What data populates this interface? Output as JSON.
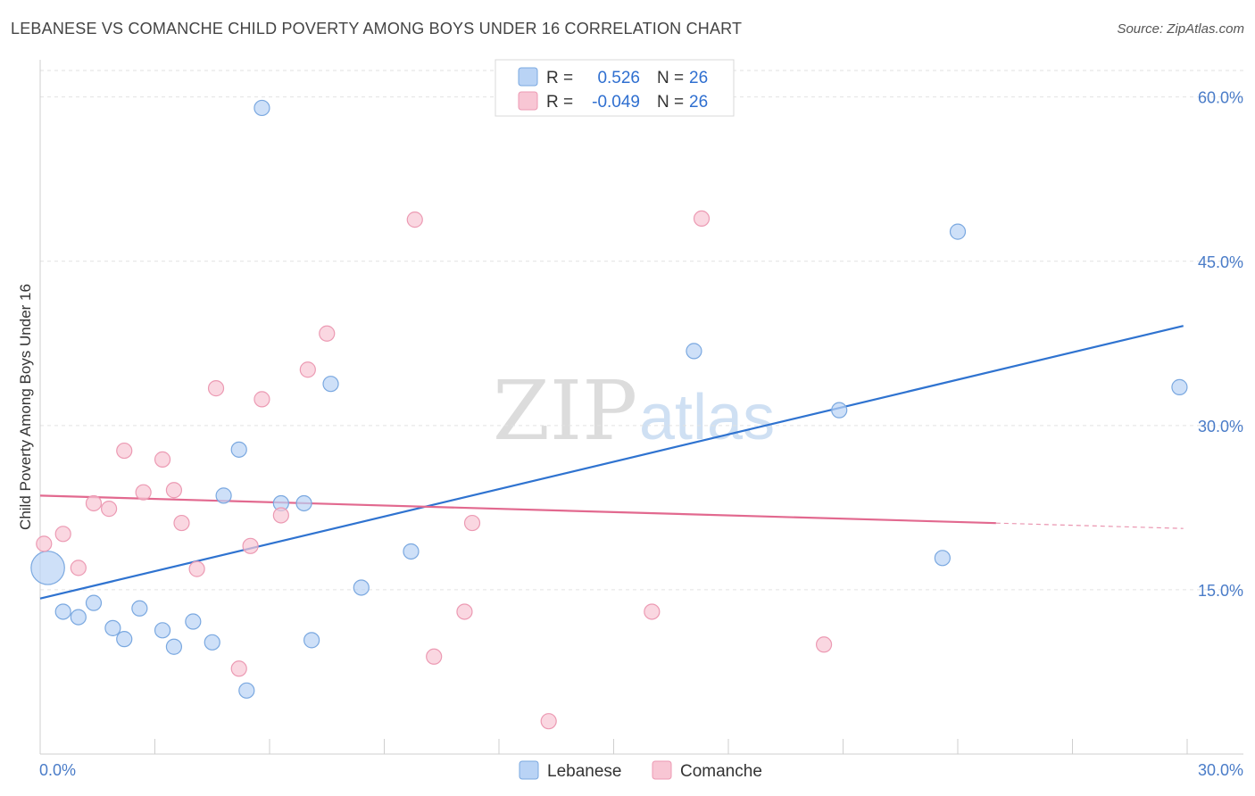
{
  "title": "LEBANESE VS COMANCHE CHILD POVERTY AMONG BOYS UNDER 16 CORRELATION CHART",
  "source": "Source: ZipAtlas.com",
  "watermark": {
    "zip": "ZIP",
    "atlas": "atlas"
  },
  "colors": {
    "blue_fill": "#b9d3f5",
    "blue_stroke": "#7aa8e0",
    "blue_line": "#2f73d0",
    "pink_fill": "#f8c6d4",
    "pink_stroke": "#ec9ab3",
    "pink_line": "#e2698f",
    "value_text": "#2f6fd0"
  },
  "legend_top": [
    {
      "r_label": "R =",
      "r_value": "0.526",
      "n_label": "N =",
      "n_value": "26",
      "series": "blue"
    },
    {
      "r_label": "R =",
      "r_value": "-0.049",
      "n_label": "N =",
      "n_value": "26",
      "series": "pink"
    }
  ],
  "chart_data": {
    "type": "scatter",
    "title": "LEBANESE VS COMANCHE CHILD POVERTY AMONG BOYS UNDER 16 CORRELATION CHART",
    "xlabel": "",
    "ylabel": "Child Poverty Among Boys Under 16",
    "xlim": [
      0,
      30
    ],
    "ylim": [
      0,
      62.5
    ],
    "x_tick_labels": [
      "0.0%",
      "30.0%"
    ],
    "y_ticks": [
      15,
      30,
      45,
      60
    ],
    "y_tick_labels": [
      "15.0%",
      "30.0%",
      "45.0%",
      "60.0%"
    ],
    "legend_position": "bottom-center",
    "series": [
      {
        "name": "Lebanese",
        "color": "blue",
        "points": [
          [
            0.2,
            17.0,
            2.2
          ],
          [
            0.6,
            13.0,
            1
          ],
          [
            1.0,
            12.5,
            1
          ],
          [
            1.4,
            13.8,
            1
          ],
          [
            1.9,
            11.5,
            1
          ],
          [
            2.2,
            10.5,
            1
          ],
          [
            2.6,
            13.3,
            1
          ],
          [
            3.2,
            11.3,
            1
          ],
          [
            3.5,
            9.8,
            1
          ],
          [
            4.0,
            12.1,
            1
          ],
          [
            4.5,
            10.2,
            1
          ],
          [
            4.8,
            23.6,
            1
          ],
          [
            5.2,
            27.8,
            1
          ],
          [
            5.4,
            5.8,
            1
          ],
          [
            5.8,
            59.0,
            1
          ],
          [
            6.3,
            22.9,
            1
          ],
          [
            6.9,
            22.9,
            1
          ],
          [
            7.1,
            10.4,
            1
          ],
          [
            7.6,
            33.8,
            1
          ],
          [
            8.4,
            15.2,
            1
          ],
          [
            9.7,
            18.5,
            1
          ],
          [
            17.1,
            36.8,
            1
          ],
          [
            20.9,
            31.4,
            1
          ],
          [
            23.6,
            17.9,
            1
          ],
          [
            24.0,
            47.7,
            1
          ],
          [
            29.8,
            33.5,
            1
          ]
        ],
        "trend": {
          "x": [
            0,
            29.9
          ],
          "y": [
            14.2,
            39.1
          ]
        }
      },
      {
        "name": "Comanche",
        "color": "pink",
        "points": [
          [
            0.1,
            19.2,
            1
          ],
          [
            0.6,
            20.1,
            1
          ],
          [
            1.0,
            17.0,
            1
          ],
          [
            1.4,
            22.9,
            1
          ],
          [
            1.8,
            22.4,
            1
          ],
          [
            2.2,
            27.7,
            1
          ],
          [
            2.7,
            23.9,
            1
          ],
          [
            3.2,
            26.9,
            1
          ],
          [
            3.5,
            24.1,
            1
          ],
          [
            3.7,
            21.1,
            1
          ],
          [
            4.1,
            16.9,
            1
          ],
          [
            4.6,
            33.4,
            1
          ],
          [
            5.2,
            7.8,
            1
          ],
          [
            5.5,
            19.0,
            1
          ],
          [
            5.8,
            32.4,
            1
          ],
          [
            6.3,
            21.8,
            1
          ],
          [
            7.0,
            35.1,
            1
          ],
          [
            7.5,
            38.4,
            1
          ],
          [
            9.8,
            48.8,
            1
          ],
          [
            10.3,
            8.9,
            1
          ],
          [
            11.1,
            13.0,
            1
          ],
          [
            11.3,
            21.1,
            1
          ],
          [
            13.3,
            3.0,
            1
          ],
          [
            16.0,
            13.0,
            1
          ],
          [
            17.3,
            48.9,
            1
          ],
          [
            20.5,
            10.0,
            1
          ]
        ],
        "trend": {
          "x": [
            0,
            29.9
          ],
          "y": [
            23.6,
            20.6
          ],
          "solid_until_x": 25.0
        }
      }
    ]
  }
}
